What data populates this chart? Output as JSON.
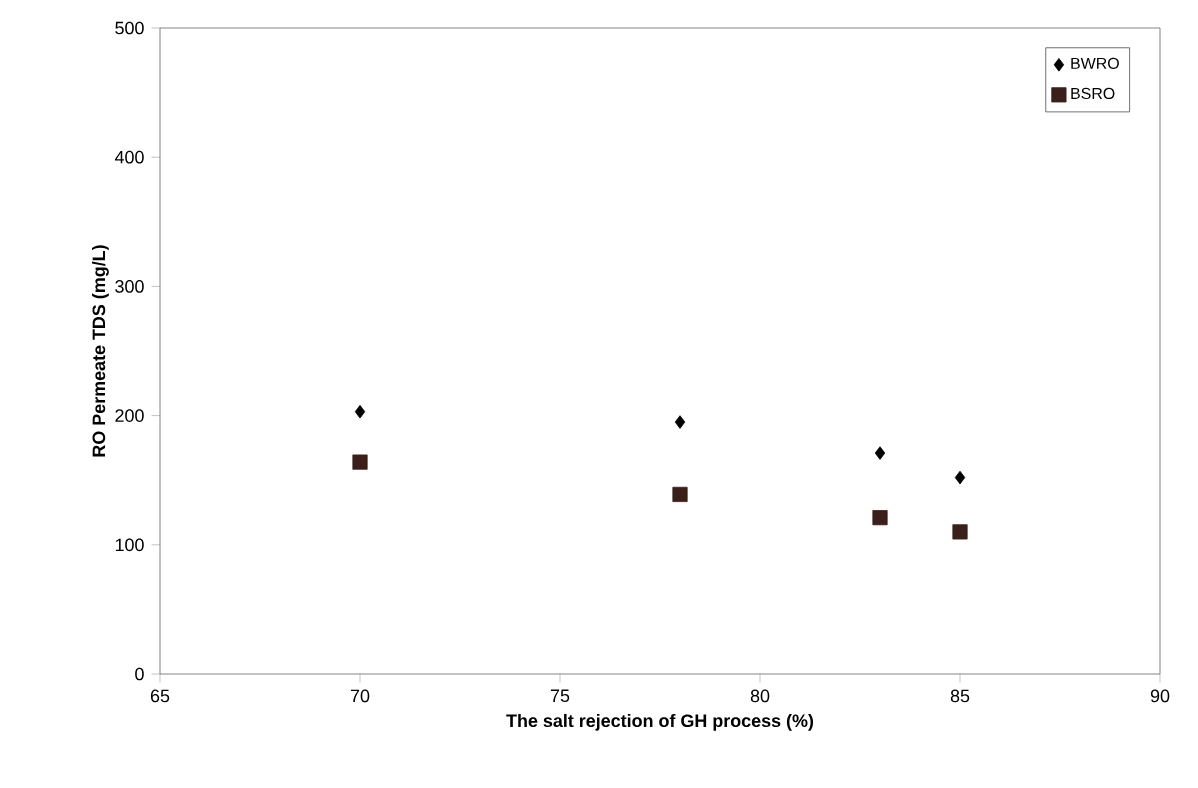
{
  "chart_data": {
    "type": "scatter",
    "xlabel": "The salt rejection of GH process (%)",
    "ylabel": "RO Permeate TDS (mg/L)",
    "x": [
      70,
      78,
      83,
      85
    ],
    "series": [
      {
        "name": "BWRO",
        "color": "#000000",
        "marker": "diamond",
        "values": [
          203,
          195,
          171,
          152
        ]
      },
      {
        "name": "BSRO",
        "color": "#3a1f1a",
        "marker": "square",
        "values": [
          164,
          139,
          121,
          110
        ]
      }
    ],
    "xlim": [
      65,
      90
    ],
    "ylim": [
      0,
      500
    ],
    "xticks": [
      65,
      70,
      75,
      80,
      85,
      90
    ],
    "yticks": [
      0,
      100,
      200,
      300,
      400,
      500
    ],
    "legend": "top right",
    "grid": false
  }
}
